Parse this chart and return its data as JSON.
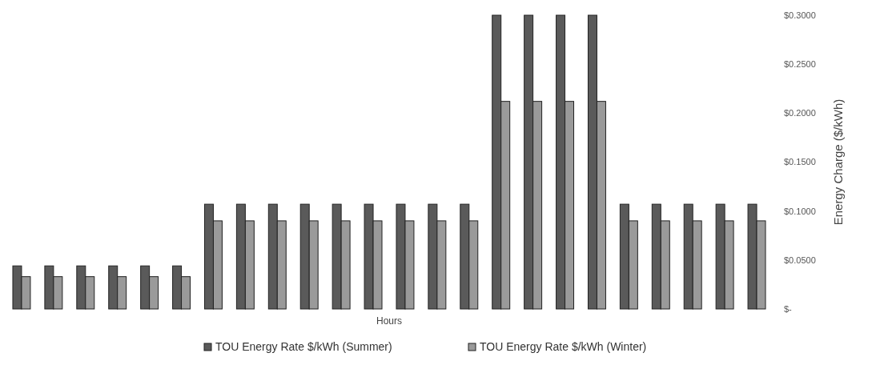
{
  "chart_data": {
    "type": "bar",
    "xlabel": "Hours",
    "ylabel": "Energy Charge ($/kWh)",
    "categories": [
      null,
      null,
      null,
      null,
      null,
      null,
      null,
      null,
      null,
      null,
      null,
      null,
      null,
      null,
      null,
      null,
      null,
      null,
      null,
      null,
      null,
      null,
      null,
      null
    ],
    "series": [
      {
        "name": "TOU Energy Rate $/kWh (Summer)",
        "color": "#5a5a5a",
        "values": [
          0.044,
          0.044,
          0.044,
          0.044,
          0.044,
          0.044,
          0.107,
          0.107,
          0.107,
          0.107,
          0.107,
          0.107,
          0.107,
          0.107,
          0.107,
          0.3,
          0.3,
          0.3,
          0.3,
          0.107,
          0.107,
          0.107,
          0.107,
          0.107
        ]
      },
      {
        "name": "TOU Energy Rate $/kWh (Winter)",
        "color": "#9a9a9a",
        "values": [
          0.033,
          0.033,
          0.033,
          0.033,
          0.033,
          0.033,
          0.09,
          0.09,
          0.09,
          0.09,
          0.09,
          0.09,
          0.09,
          0.09,
          0.09,
          0.212,
          0.212,
          0.212,
          0.212,
          0.09,
          0.09,
          0.09,
          0.09,
          0.09
        ]
      }
    ],
    "ylim": [
      0,
      0.3
    ],
    "yticks": [
      {
        "value": 0,
        "label": "$-"
      },
      {
        "value": 0.05,
        "label": "$0.0500"
      },
      {
        "value": 0.1,
        "label": "$0.1000"
      },
      {
        "value": 0.15,
        "label": "$0.1500"
      },
      {
        "value": 0.2,
        "label": "$0.2000"
      },
      {
        "value": 0.25,
        "label": "$0.2500"
      },
      {
        "value": 0.3,
        "label": "$0.3000"
      }
    ],
    "grid": false,
    "legend": "bottom"
  }
}
